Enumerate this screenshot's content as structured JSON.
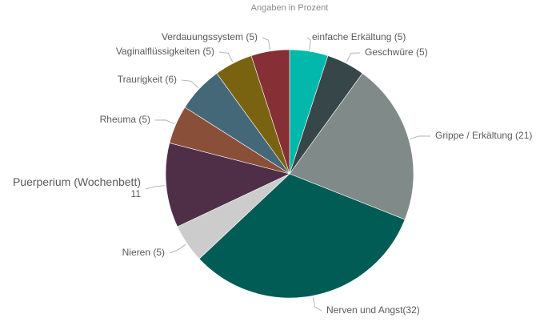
{
  "chart_data": {
    "type": "pie",
    "title": "",
    "subtitle": "Angaben in Prozent",
    "start_angle_deg": 0,
    "direction": "clockwise",
    "legend": "none",
    "slices": [
      {
        "label": "einfache Erkältung",
        "value": 5,
        "text": "einfache Erkältung (5)",
        "color": "#01b8aa"
      },
      {
        "label": "Geschwüre",
        "value": 5,
        "text": "Geschwüre (5)",
        "color": "#374649"
      },
      {
        "label": "Grippe / Erkältung",
        "value": 21,
        "text": "Grippe / Erkältung (21)",
        "color": "#808a89"
      },
      {
        "label": "Nerven und Angst",
        "value": 32,
        "text": "Nerven und Angst(32)",
        "color": "#015c55"
      },
      {
        "label": "Nieren",
        "value": 5,
        "text": "Nieren (5)",
        "color": "#cccccc"
      },
      {
        "label": "Puerperium (Wochenbett)",
        "value": 11,
        "text": "Puerperium (Wochenbett)",
        "text2": "11",
        "color": "#4f2e48"
      },
      {
        "label": "Rheuma",
        "value": 5,
        "text": "Rheuma (5)",
        "color": "#8a4f38"
      },
      {
        "label": "Traurigkeit",
        "value": 6,
        "text": "Traurigkeit (6)",
        "color": "#456879"
      },
      {
        "label": "Vaginalflüssigkeiten",
        "value": 5,
        "text": "Vaginalflüssigkeiten (5)",
        "color": "#7a6310"
      },
      {
        "label": "Verdauungssystem",
        "value": 5,
        "text": "Verdauungssystem (5)",
        "color": "#862f35"
      }
    ]
  }
}
